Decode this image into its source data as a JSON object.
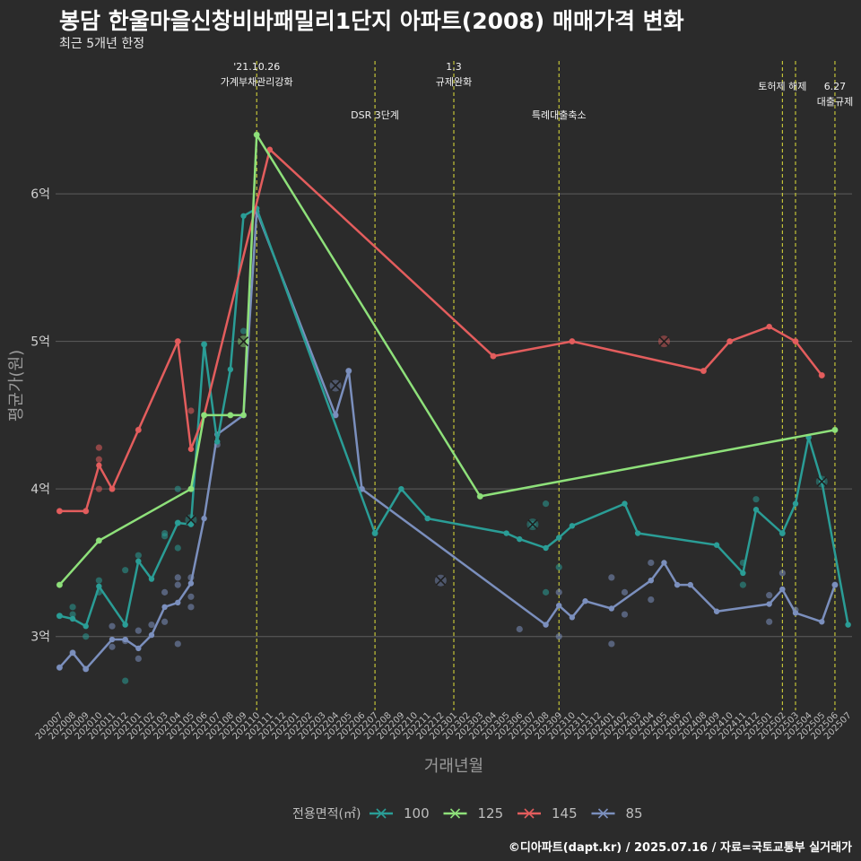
{
  "title": "봉담 한울마을신창비바패밀리1단지 아파트(2008) 매매가격 변화",
  "subtitle": "최근 5개년 한정",
  "caption": "©디아파트(dapt.kr) / 2025.07.16 / 자료=국토교통부 실거래가",
  "chart_data": {
    "type": "line",
    "xlabel": "거래년월",
    "ylabel": "평균가(원)",
    "ylim": [
      2.5,
      6.9
    ],
    "y_ticks": [
      3,
      4,
      5,
      6
    ],
    "y_tick_labels": [
      "3억",
      "4억",
      "5억",
      "6억"
    ],
    "grid": true,
    "legend_title": "전용면적(㎡)",
    "legend_position": "bottom",
    "x_categories": [
      "202007",
      "202008",
      "202009",
      "202010",
      "202011",
      "202012",
      "202101",
      "202102",
      "202103",
      "202104",
      "202105",
      "202106",
      "202107",
      "202108",
      "202109",
      "202110",
      "202111",
      "202112",
      "202201",
      "202202",
      "202203",
      "202204",
      "202205",
      "202206",
      "202207",
      "202208",
      "202209",
      "202210",
      "202211",
      "202212",
      "202301",
      "202302",
      "202303",
      "202304",
      "202305",
      "202306",
      "202307",
      "202308",
      "202309",
      "202310",
      "202311",
      "202312",
      "202401",
      "202402",
      "202403",
      "202404",
      "202405",
      "202406",
      "202407",
      "202408",
      "202409",
      "202410",
      "202411",
      "202412",
      "202501",
      "202502",
      "202503",
      "202504",
      "202505",
      "202506",
      "202507"
    ],
    "events": [
      {
        "x": "202110",
        "label": "'21.10.26\n가계부채관리강화",
        "level": 1
      },
      {
        "x": "202207",
        "label": "DSR 3단계",
        "level": 2
      },
      {
        "x": "202301",
        "label": "1.3\n규제완화",
        "level": 1
      },
      {
        "x": "202309",
        "label": "특례대출축소",
        "level": 2
      },
      {
        "x": "202502",
        "label": "토허제 해제",
        "level": 1
      },
      {
        "x": "202503",
        "label": "",
        "level": 1
      },
      {
        "x": "202506",
        "label": "6.27\n대출규제",
        "level": 3
      }
    ],
    "series": [
      {
        "name": "100",
        "color": "#2a9d96",
        "line": [
          [
            "202007",
            3.14
          ],
          [
            "202008",
            3.12
          ],
          [
            "202009",
            3.07
          ],
          [
            "202010",
            3.34
          ],
          [
            "202012",
            3.08
          ],
          [
            "202101",
            3.51
          ],
          [
            "202102",
            3.39
          ],
          [
            "202104",
            3.77
          ],
          [
            "202105",
            3.76
          ],
          [
            "202106",
            4.98
          ],
          [
            "202107",
            4.32
          ],
          [
            "202108",
            4.81
          ],
          [
            "202109",
            5.85
          ],
          [
            "202110",
            5.9
          ],
          [
            "202207",
            3.7
          ],
          [
            "202209",
            4.0
          ],
          [
            "202211",
            3.8
          ],
          [
            "202305",
            3.7
          ],
          [
            "202306",
            3.66
          ],
          [
            "202308",
            3.6
          ],
          [
            "202309",
            3.67
          ],
          [
            "202310",
            3.75
          ],
          [
            "202402",
            3.9
          ],
          [
            "202403",
            3.7
          ],
          [
            "202409",
            3.62
          ],
          [
            "202411",
            3.43
          ],
          [
            "202412",
            3.86
          ],
          [
            "202502",
            3.7
          ],
          [
            "202503",
            3.9
          ],
          [
            "202504",
            4.35
          ],
          [
            "202505",
            4.05
          ],
          [
            "202507",
            3.08
          ]
        ],
        "points": [
          [
            "202007",
            3.14
          ],
          [
            "202008",
            3.15
          ],
          [
            "202008",
            3.2
          ],
          [
            "202009",
            3.0
          ],
          [
            "202010",
            3.3
          ],
          [
            "202010",
            3.38
          ],
          [
            "202012",
            2.7
          ],
          [
            "202012",
            3.45
          ],
          [
            "202101",
            3.55
          ],
          [
            "202103",
            3.68
          ],
          [
            "202103",
            3.7
          ],
          [
            "202104",
            3.6
          ],
          [
            "202104",
            4.0
          ],
          [
            "202104",
            3.77
          ],
          [
            "202106",
            4.98
          ],
          [
            "202109",
            5.07
          ],
          [
            "202207",
            3.7
          ],
          [
            "202307",
            3.76
          ],
          [
            "202308",
            3.3
          ],
          [
            "202308",
            3.9
          ],
          [
            "202309",
            3.47
          ],
          [
            "202411",
            3.5
          ],
          [
            "202411",
            3.35
          ],
          [
            "202412",
            3.93
          ],
          [
            "202502",
            3.7
          ]
        ],
        "cancelled": [
          [
            "202105",
            3.79
          ],
          [
            "202307",
            3.76
          ],
          [
            "202505",
            4.05
          ]
        ]
      },
      {
        "name": "125",
        "color": "#8ee07a",
        "line": [
          [
            "202007",
            3.35
          ],
          [
            "202010",
            3.65
          ],
          [
            "202105",
            4.0
          ],
          [
            "202106",
            4.5
          ],
          [
            "202108",
            4.5
          ],
          [
            "202109",
            4.5
          ],
          [
            "202110",
            6.4
          ],
          [
            "202303",
            3.95
          ],
          [
            "202506",
            4.4
          ]
        ],
        "points": [
          [
            "202007",
            3.35
          ],
          [
            "202010",
            3.65
          ],
          [
            "202105",
            4.0
          ],
          [
            "202106",
            4.5
          ],
          [
            "202108",
            4.5
          ],
          [
            "202110",
            6.4
          ],
          [
            "202303",
            3.95
          ],
          [
            "202506",
            4.4
          ]
        ],
        "cancelled": [
          [
            "202109",
            5.0
          ]
        ]
      },
      {
        "name": "145",
        "color": "#e35d5d",
        "line": [
          [
            "202007",
            3.85
          ],
          [
            "202009",
            3.85
          ],
          [
            "202010",
            4.16
          ],
          [
            "202011",
            4.0
          ],
          [
            "202101",
            4.4
          ],
          [
            "202104",
            5.0
          ],
          [
            "202105",
            4.27
          ],
          [
            "202106",
            4.5
          ],
          [
            "202111",
            6.3
          ],
          [
            "202304",
            4.9
          ],
          [
            "202310",
            5.0
          ],
          [
            "202408",
            4.8
          ],
          [
            "202410",
            5.0
          ],
          [
            "202501",
            5.1
          ],
          [
            "202503",
            5.0
          ],
          [
            "202505",
            4.77
          ]
        ],
        "points": [
          [
            "202007",
            3.85
          ],
          [
            "202009",
            3.85
          ],
          [
            "202010",
            4.28
          ],
          [
            "202010",
            4.2
          ],
          [
            "202010",
            4.0
          ],
          [
            "202011",
            4.0
          ],
          [
            "202101",
            4.4
          ],
          [
            "202104",
            5.0
          ],
          [
            "202105",
            4.53
          ],
          [
            "202304",
            4.9
          ],
          [
            "202310",
            5.0
          ],
          [
            "202408",
            4.8
          ],
          [
            "202410",
            5.0
          ],
          [
            "202503",
            5.0
          ],
          [
            "202505",
            4.77
          ]
        ],
        "cancelled": [
          [
            "202405",
            5.0
          ]
        ]
      },
      {
        "name": "85",
        "color": "#7b8fbd",
        "line": [
          [
            "202007",
            2.79
          ],
          [
            "202008",
            2.89
          ],
          [
            "202009",
            2.78
          ],
          [
            "202011",
            2.98
          ],
          [
            "202012",
            2.98
          ],
          [
            "202101",
            2.92
          ],
          [
            "202102",
            3.01
          ],
          [
            "202103",
            3.2
          ],
          [
            "202104",
            3.23
          ],
          [
            "202105",
            3.36
          ],
          [
            "202106",
            3.8
          ],
          [
            "202107",
            4.37
          ],
          [
            "202109",
            4.5
          ],
          [
            "202110",
            5.88
          ],
          [
            "202204",
            4.5
          ],
          [
            "202205",
            4.8
          ],
          [
            "202206",
            4.0
          ],
          [
            "202308",
            3.08
          ],
          [
            "202309",
            3.21
          ],
          [
            "202310",
            3.13
          ],
          [
            "202311",
            3.24
          ],
          [
            "202401",
            3.19
          ],
          [
            "202404",
            3.38
          ],
          [
            "202405",
            3.5
          ],
          [
            "202406",
            3.35
          ],
          [
            "202407",
            3.35
          ],
          [
            "202409",
            3.17
          ],
          [
            "202501",
            3.22
          ],
          [
            "202502",
            3.32
          ],
          [
            "202503",
            3.16
          ],
          [
            "202505",
            3.1
          ],
          [
            "202506",
            3.35
          ]
        ],
        "points": [
          [
            "202007",
            2.79
          ],
          [
            "202008",
            2.89
          ],
          [
            "202009",
            2.78
          ],
          [
            "202011",
            3.07
          ],
          [
            "202011",
            2.93
          ],
          [
            "202012",
            2.97
          ],
          [
            "202101",
            3.04
          ],
          [
            "202101",
            2.85
          ],
          [
            "202102",
            3.08
          ],
          [
            "202103",
            3.3
          ],
          [
            "202103",
            3.1
          ],
          [
            "202104",
            3.4
          ],
          [
            "202104",
            3.35
          ],
          [
            "202104",
            2.95
          ],
          [
            "202105",
            3.27
          ],
          [
            "202105",
            3.4
          ],
          [
            "202105",
            3.2
          ],
          [
            "202107",
            4.3
          ],
          [
            "202109",
            4.5
          ],
          [
            "202204",
            4.5
          ],
          [
            "202205",
            4.8
          ],
          [
            "202206",
            4.0
          ],
          [
            "202306",
            3.05
          ],
          [
            "202309",
            3.3
          ],
          [
            "202309",
            3.0
          ],
          [
            "202401",
            2.95
          ],
          [
            "202401",
            3.4
          ],
          [
            "202402",
            3.3
          ],
          [
            "202402",
            3.15
          ],
          [
            "202404",
            3.5
          ],
          [
            "202404",
            3.25
          ],
          [
            "202501",
            3.28
          ],
          [
            "202501",
            3.1
          ],
          [
            "202502",
            3.43
          ],
          [
            "202503",
            3.18
          ],
          [
            "202506",
            3.35
          ]
        ],
        "cancelled": [
          [
            "202204",
            4.7
          ],
          [
            "202212",
            3.38
          ]
        ]
      }
    ]
  }
}
